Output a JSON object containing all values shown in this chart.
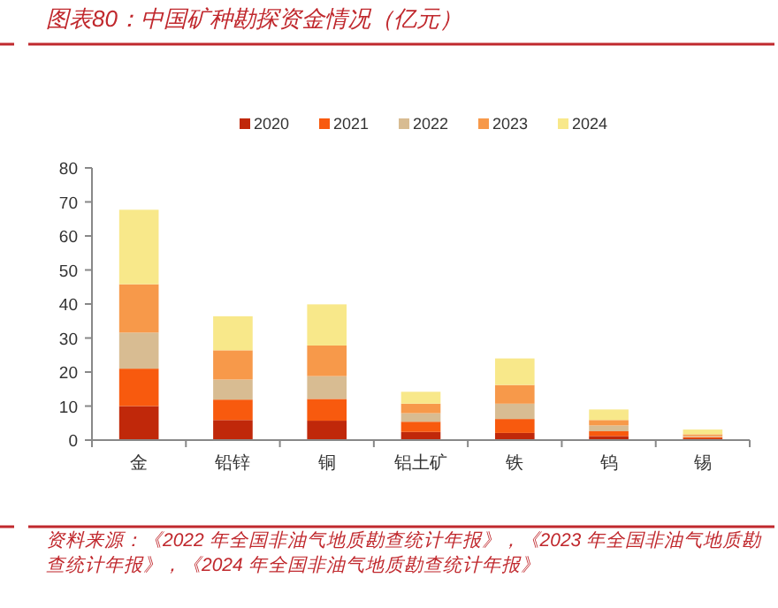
{
  "chart_data": {
    "type": "bar",
    "title": "图表80：中国矿种勘探资金情况（亿元）",
    "categories": [
      "金",
      "铅锌",
      "铜",
      "铝土矿",
      "铁",
      "钨",
      "锡"
    ],
    "stacked": true,
    "legend": "top",
    "grid": false,
    "ylim": [
      0,
      80
    ],
    "yticks": [
      0,
      10,
      20,
      30,
      40,
      50,
      60,
      70,
      80
    ],
    "series": [
      {
        "name": "2020",
        "color": "#c0280a",
        "values": [
          10,
          5.9,
          5.7,
          2.4,
          2.1,
          1.2,
          0.5
        ]
      },
      {
        "name": "2021",
        "color": "#f85a0e",
        "values": [
          11,
          6.0,
          6.4,
          3.0,
          4.1,
          1.4,
          0.4
        ]
      },
      {
        "name": "2022",
        "color": "#d8bc92",
        "values": [
          10.6,
          5.9,
          6.7,
          2.5,
          4.5,
          1.7,
          0.3
        ]
      },
      {
        "name": "2023",
        "color": "#f7994a",
        "values": [
          14.2,
          8.6,
          9.0,
          2.8,
          5.5,
          1.6,
          0.5
        ]
      },
      {
        "name": "2024",
        "color": "#f8e88a",
        "values": [
          21.9,
          10.0,
          12.1,
          3.5,
          7.8,
          3.1,
          1.4
        ]
      }
    ],
    "annotations": [
      "资料来源：《2022 年全国非油气地质勘查统计年报》，《2023 年全国非油气地质勘查统计年报》，《2024 年全国非油气地质勘查统计年报》"
    ]
  }
}
